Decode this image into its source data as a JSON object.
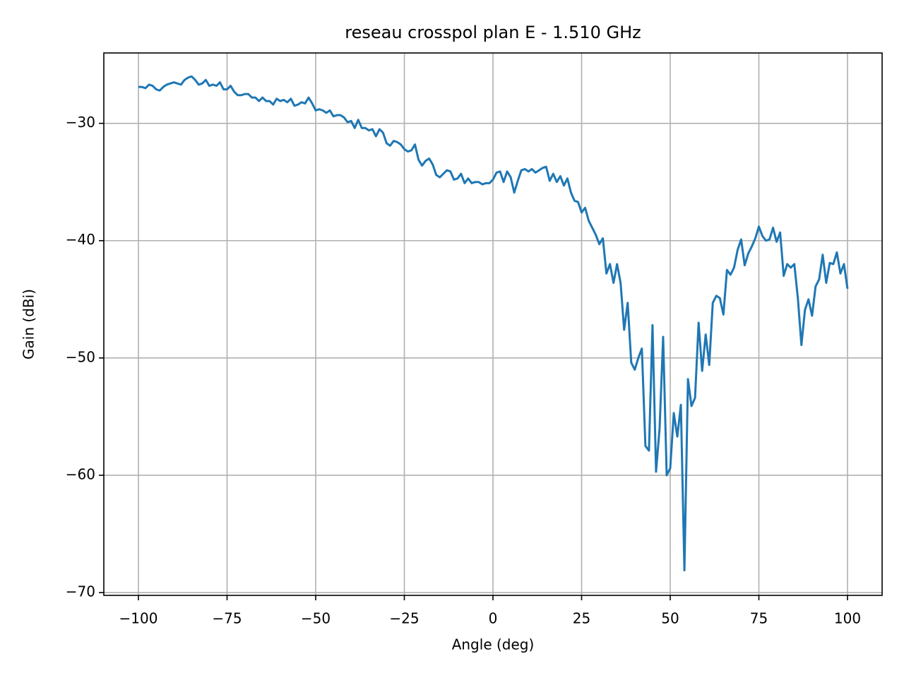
{
  "chart_data": {
    "type": "line",
    "title": "reseau crosspol plan E - 1.510 GHz",
    "x_label": "Angle (deg)",
    "y_label": "Gain (dBi)",
    "x": [
      -100,
      -99,
      -98,
      -97,
      -96,
      -95,
      -94,
      -93,
      -92,
      -91,
      -90,
      -89,
      -88,
      -87,
      -86,
      -85,
      -84,
      -83,
      -82,
      -81,
      -80,
      -79,
      -78,
      -77,
      -76,
      -75,
      -74,
      -73,
      -72,
      -71,
      -70,
      -69,
      -68,
      -67,
      -66,
      -65,
      -64,
      -63,
      -62,
      -61,
      -60,
      -59,
      -58,
      -57,
      -56,
      -55,
      -54,
      -53,
      -52,
      -51,
      -50,
      -49,
      -48,
      -47,
      -46,
      -45,
      -44,
      -43,
      -42,
      -41,
      -40,
      -39,
      -38,
      -37,
      -36,
      -35,
      -34,
      -33,
      -32,
      -31,
      -30,
      -29,
      -28,
      -27,
      -26,
      -25,
      -24,
      -23,
      -22,
      -21,
      -20,
      -19,
      -18,
      -17,
      -16,
      -15,
      -14,
      -13,
      -12,
      -11,
      -10,
      -9,
      -8,
      -7,
      -6,
      -5,
      -4,
      -3,
      -2,
      -1,
      0,
      1,
      2,
      3,
      4,
      5,
      6,
      7,
      8,
      9,
      10,
      11,
      12,
      13,
      14,
      15,
      16,
      17,
      18,
      19,
      20,
      21,
      22,
      23,
      24,
      25,
      26,
      27,
      28,
      29,
      30,
      31,
      32,
      33,
      34,
      35,
      36,
      37,
      38,
      39,
      40,
      41,
      42,
      43,
      44,
      45,
      46,
      47,
      48,
      49,
      50,
      51,
      52,
      53,
      54,
      55,
      56,
      57,
      58,
      59,
      60,
      61,
      62,
      63,
      64,
      65,
      66,
      67,
      68,
      69,
      70,
      71,
      72,
      73,
      74,
      75,
      76,
      77,
      78,
      79,
      80,
      81,
      82,
      83,
      84,
      85,
      86,
      87,
      88,
      89,
      90,
      91,
      92,
      93,
      94,
      95,
      96,
      97,
      98,
      99,
      100
    ],
    "series": [
      {
        "color": "#1f77b4",
        "values": [
          -26.9,
          -26.9,
          -27.0,
          -26.7,
          -26.8,
          -27.1,
          -27.2,
          -26.9,
          -26.7,
          -26.6,
          -26.5,
          -26.6,
          -26.7,
          -26.3,
          -26.1,
          -26.0,
          -26.3,
          -26.7,
          -26.6,
          -26.3,
          -26.8,
          -26.7,
          -26.8,
          -26.5,
          -27.1,
          -27.1,
          -26.8,
          -27.3,
          -27.6,
          -27.6,
          -27.5,
          -27.5,
          -27.8,
          -27.8,
          -28.1,
          -27.8,
          -28.1,
          -28.1,
          -28.4,
          -27.9,
          -28.1,
          -28.0,
          -28.2,
          -27.9,
          -28.5,
          -28.4,
          -28.2,
          -28.3,
          -27.8,
          -28.3,
          -28.9,
          -28.8,
          -28.9,
          -29.1,
          -28.9,
          -29.4,
          -29.3,
          -29.3,
          -29.5,
          -29.9,
          -29.8,
          -30.4,
          -29.7,
          -30.4,
          -30.4,
          -30.6,
          -30.5,
          -31.1,
          -30.5,
          -30.8,
          -31.7,
          -31.9,
          -31.5,
          -31.6,
          -31.8,
          -32.2,
          -32.4,
          -32.3,
          -31.8,
          -33.1,
          -33.6,
          -33.2,
          -33.0,
          -33.5,
          -34.4,
          -34.6,
          -34.3,
          -34.0,
          -34.1,
          -34.8,
          -34.7,
          -34.3,
          -35.1,
          -34.7,
          -35.1,
          -35.0,
          -35.0,
          -35.2,
          -35.1,
          -35.1,
          -34.8,
          -34.2,
          -34.1,
          -35.0,
          -34.1,
          -34.6,
          -35.9,
          -34.9,
          -34.0,
          -33.9,
          -34.1,
          -33.9,
          -34.2,
          -34.0,
          -33.8,
          -33.7,
          -34.9,
          -34.3,
          -35.0,
          -34.5,
          -35.3,
          -34.7,
          -35.9,
          -36.6,
          -36.7,
          -37.6,
          -37.2,
          -38.3,
          -38.9,
          -39.5,
          -40.3,
          -39.8,
          -42.8,
          -42.0,
          -43.6,
          -42.0,
          -43.6,
          -47.6,
          -45.3,
          -50.4,
          -51.0,
          -50.0,
          -49.2,
          -57.5,
          -57.9,
          -47.2,
          -59.7,
          -56.0,
          -48.2,
          -60.0,
          -59.4,
          -54.7,
          -56.7,
          -54.0,
          -68.1,
          -51.8,
          -54.1,
          -53.4,
          -47.0,
          -51.1,
          -48.0,
          -50.6,
          -45.3,
          -44.7,
          -44.9,
          -46.3,
          -42.5,
          -42.9,
          -42.3,
          -40.8,
          -39.9,
          -42.1,
          -41.1,
          -40.5,
          -39.8,
          -38.8,
          -39.6,
          -40.0,
          -39.9,
          -38.9,
          -40.1,
          -39.3,
          -43.0,
          -42.0,
          -42.3,
          -42.0,
          -44.9,
          -48.9,
          -45.9,
          -45.0,
          -46.4,
          -43.9,
          -43.3,
          -41.2,
          -43.6,
          -41.9,
          -42.0,
          -41.0,
          -42.8,
          -42.0,
          -44.1
        ]
      }
    ],
    "xlim": [
      -109.76,
      109.76
    ],
    "ylim": [
      -70.24,
      -24.0
    ],
    "xticks": [
      {
        "value": -100,
        "label": "−100"
      },
      {
        "value": -75,
        "label": "−75"
      },
      {
        "value": -50,
        "label": "−50"
      },
      {
        "value": -25,
        "label": "−25"
      },
      0,
      25,
      50,
      75,
      100
    ],
    "yticks": [
      {
        "value": -70,
        "label": "−70"
      },
      {
        "value": -60,
        "label": "−60"
      },
      {
        "value": -50,
        "label": "−50"
      },
      {
        "value": -40,
        "label": "−40"
      },
      {
        "value": -30,
        "label": "−30"
      }
    ],
    "grid": true
  }
}
